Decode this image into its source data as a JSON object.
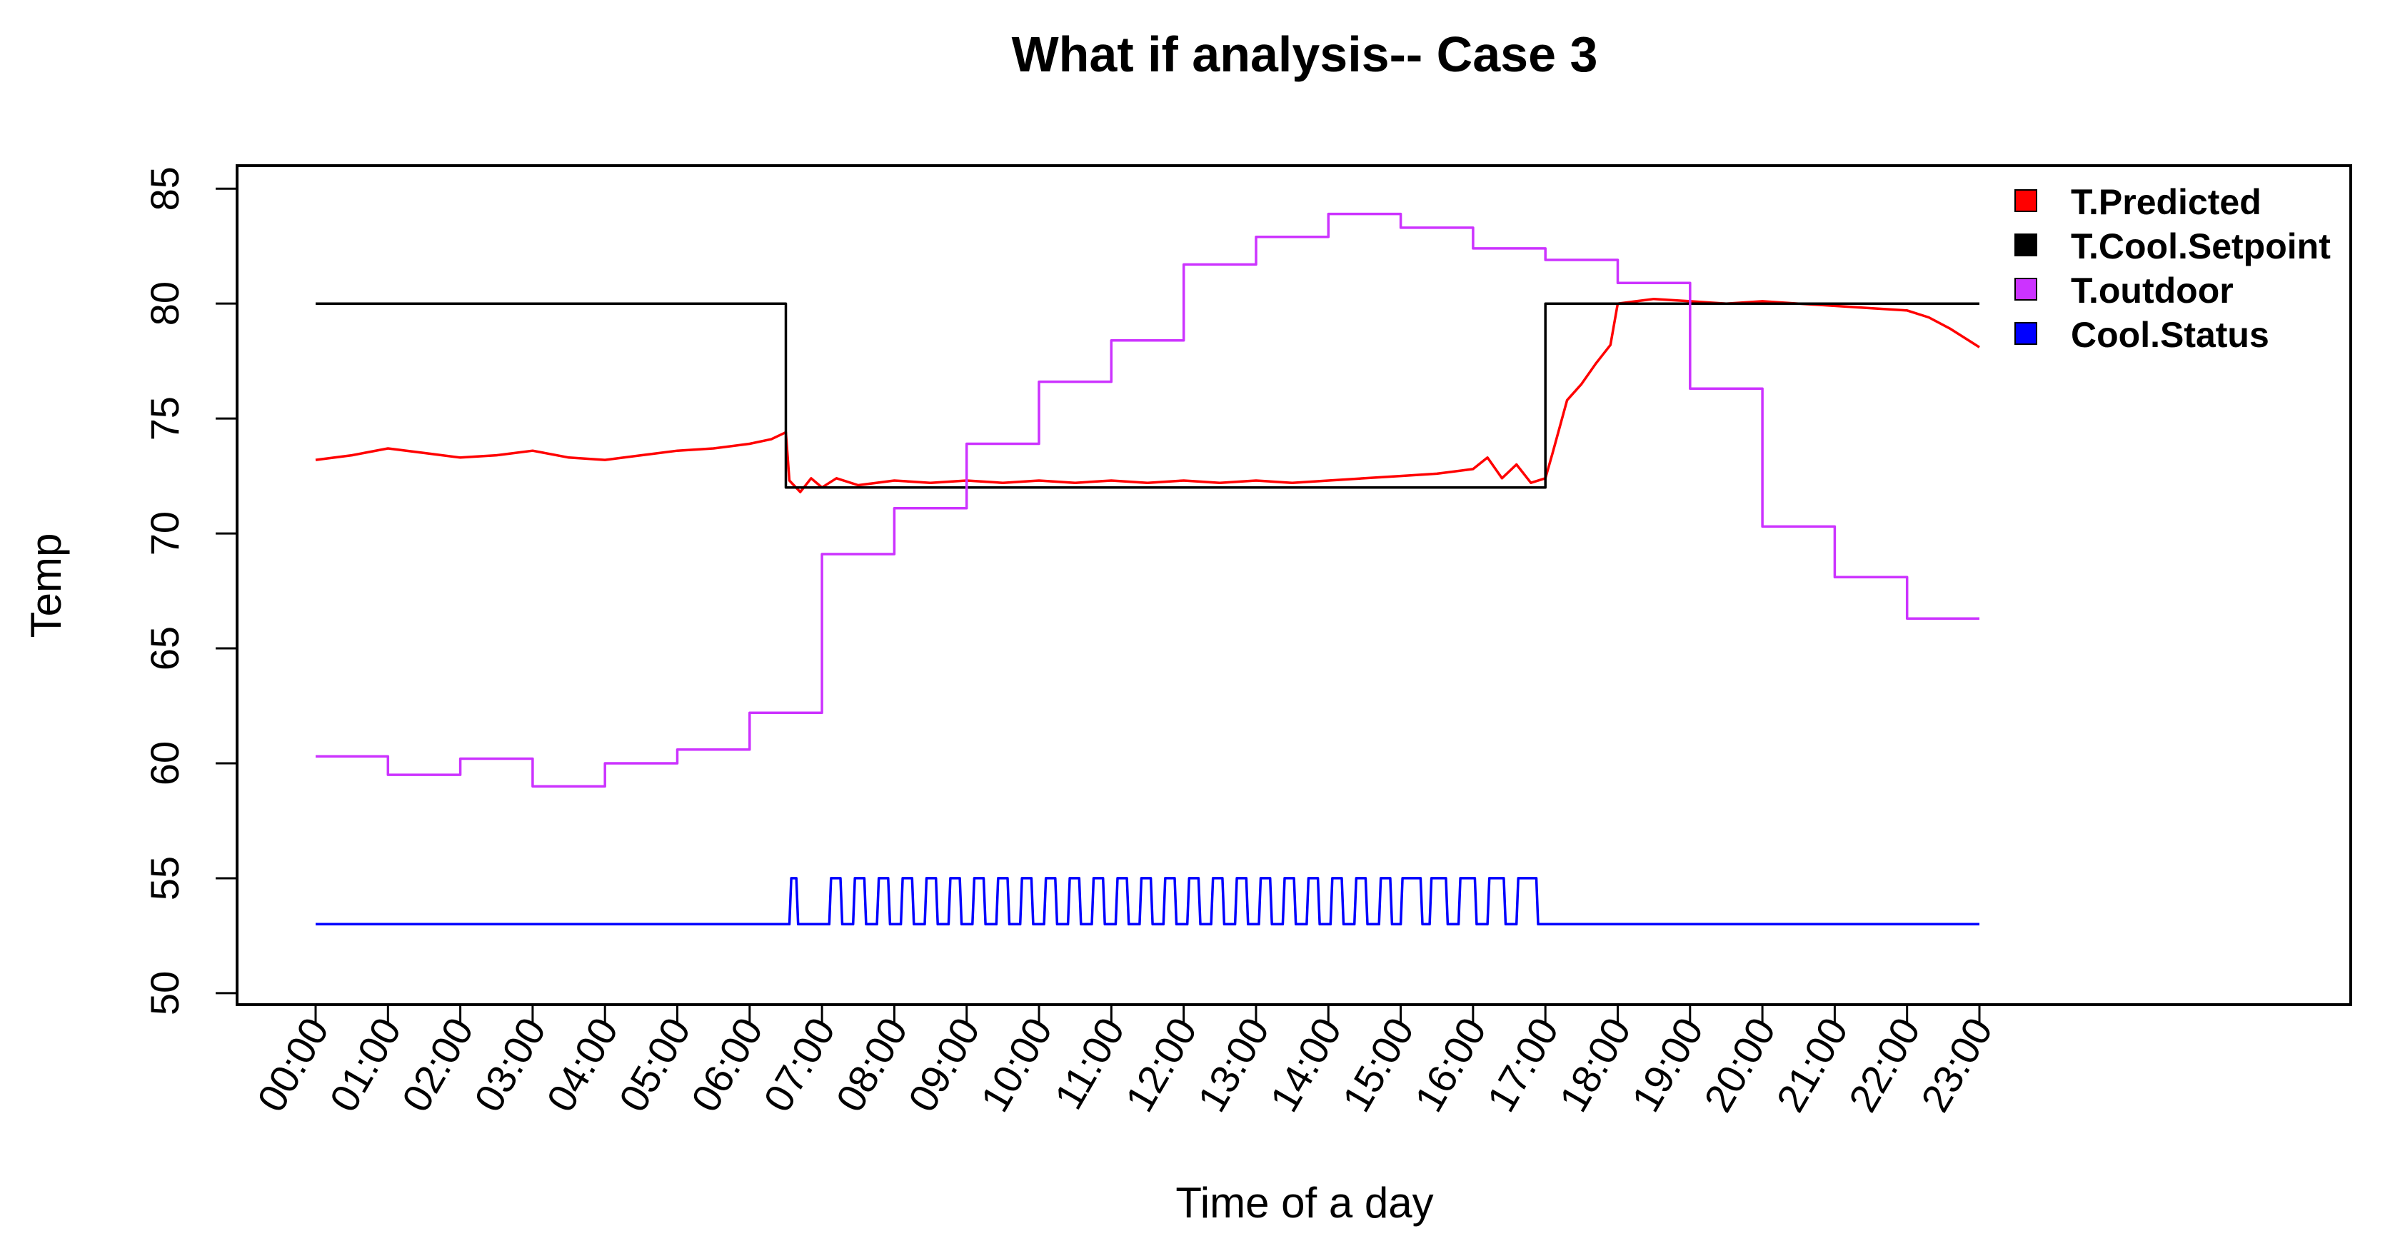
{
  "chart_data": {
    "type": "line",
    "title": "What if analysis-- Case 3",
    "xlabel": "Time of a day",
    "ylabel": "Temp",
    "xlim": [
      0,
      23
    ],
    "ylim": [
      49.5,
      86
    ],
    "yticks": [
      50,
      55,
      60,
      65,
      70,
      75,
      80,
      85
    ],
    "x_tick_labels": [
      "00:00",
      "01:00",
      "02:00",
      "03:00",
      "04:00",
      "05:00",
      "06:00",
      "07:00",
      "08:00",
      "09:00",
      "10:00",
      "11:00",
      "12:00",
      "13:00",
      "14:00",
      "15:00",
      "16:00",
      "17:00",
      "18:00",
      "19:00",
      "20:00",
      "21:00",
      "22:00",
      "23:00"
    ],
    "legend_position": "top-right",
    "series": [
      {
        "name": "T.Predicted",
        "color": "#ff0000",
        "style": "line",
        "x": [
          0,
          0.5,
          1,
          1.5,
          2,
          2.5,
          3,
          3.5,
          4,
          4.5,
          5,
          5.5,
          6,
          6.3,
          6.5,
          6.55,
          6.7,
          6.85,
          7,
          7.2,
          7.5,
          8,
          8.5,
          9,
          9.5,
          10,
          10.5,
          11,
          11.5,
          12,
          12.5,
          13,
          13.5,
          14,
          14.5,
          15,
          15.5,
          16,
          16.2,
          16.4,
          16.6,
          16.8,
          17,
          17.1,
          17.3,
          17.5,
          17.7,
          17.9,
          18,
          18.5,
          19,
          19.5,
          20,
          20.5,
          21,
          21.5,
          22,
          22.3,
          22.6,
          22.9,
          23
        ],
        "y": [
          73.2,
          73.4,
          73.7,
          73.5,
          73.3,
          73.4,
          73.6,
          73.3,
          73.2,
          73.4,
          73.6,
          73.7,
          73.9,
          74.1,
          74.4,
          72.3,
          71.8,
          72.4,
          72.0,
          72.4,
          72.1,
          72.3,
          72.2,
          72.3,
          72.2,
          72.3,
          72.2,
          72.3,
          72.2,
          72.3,
          72.2,
          72.3,
          72.2,
          72.3,
          72.4,
          72.5,
          72.6,
          72.8,
          73.3,
          72.4,
          73.0,
          72.2,
          72.4,
          73.5,
          75.8,
          76.5,
          77.4,
          78.2,
          80.0,
          80.2,
          80.1,
          80.0,
          80.1,
          80.0,
          79.9,
          79.8,
          79.7,
          79.4,
          78.9,
          78.3,
          78.1
        ]
      },
      {
        "name": "T.Cool.Setpoint",
        "color": "#000000",
        "style": "step",
        "x": [
          0,
          6.5,
          6.5,
          17.0,
          17.0,
          23
        ],
        "y": [
          80,
          80,
          72,
          72,
          80,
          80
        ]
      },
      {
        "name": "T.outdoor",
        "color": "#cc33ff",
        "style": "step",
        "x": [
          0,
          1,
          2,
          3,
          4,
          5,
          6,
          7,
          8,
          9,
          10,
          11,
          12,
          13,
          14,
          15,
          16,
          17,
          18,
          19,
          20,
          21,
          22,
          23
        ],
        "y": [
          60.3,
          59.5,
          60.2,
          59.0,
          60.0,
          60.6,
          62.2,
          69.1,
          71.1,
          73.9,
          76.6,
          78.4,
          81.7,
          82.9,
          83.9,
          83.3,
          82.4,
          81.9,
          80.9,
          76.3,
          70.3,
          68.1,
          66.3,
          66.3
        ]
      },
      {
        "name": "Cool.Status",
        "color": "#0000ff",
        "style": "pulse",
        "low": 53,
        "high": 55,
        "x_start": 0,
        "x_end": 23,
        "pulse_starts": [
          6.55,
          7.1,
          7.43,
          7.76,
          8.09,
          8.42,
          8.75,
          9.08,
          9.41,
          9.74,
          10.07,
          10.4,
          10.73,
          11.06,
          11.39,
          11.72,
          12.05,
          12.38,
          12.71,
          13.04,
          13.37,
          13.7,
          14.03,
          14.36,
          14.7,
          15.0,
          15.4,
          15.8,
          16.2,
          16.6
        ],
        "pulse_widths": [
          0.12,
          0.18,
          0.18,
          0.18,
          0.18,
          0.18,
          0.18,
          0.18,
          0.18,
          0.18,
          0.18,
          0.18,
          0.18,
          0.18,
          0.18,
          0.18,
          0.18,
          0.18,
          0.18,
          0.18,
          0.18,
          0.18,
          0.18,
          0.18,
          0.18,
          0.3,
          0.25,
          0.25,
          0.25,
          0.3
        ]
      }
    ]
  }
}
